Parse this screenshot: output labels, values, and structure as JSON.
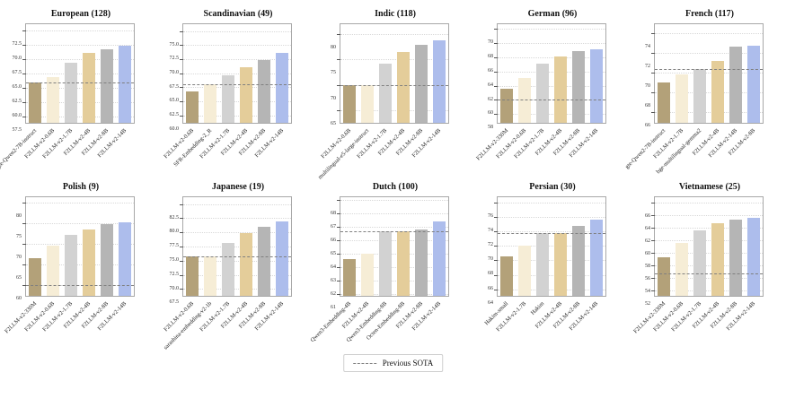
{
  "legend": {
    "label": "Previous SOTA"
  },
  "colors": {
    "bar_palette": [
      "#b3a179",
      "#f6edd6",
      "#d2d2d2",
      "#e4cd9a",
      "#b5b5b5",
      "#adbdec"
    ],
    "sota_line": "#7f7f7f",
    "gridline": "#d8d8d8",
    "axis_border": "#a8a8a8",
    "title_text": "#111111"
  },
  "chart_data": [
    {
      "type": "bar",
      "slug": "european",
      "title": "European (128)",
      "categories": [
        "gte-Qwen2-7B-instruct",
        "F2LLM-v2-0.6B",
        "F2LLM-v2-1.7B",
        "F2LLM-v2-4B",
        "F2LLM-v2-8B",
        "F2LLM-v2-14B"
      ],
      "values": [
        63.5,
        64.4,
        66.9,
        68.6,
        69.2,
        69.9
      ],
      "sota": 63.5,
      "yticks": [
        "57.5",
        "60.0",
        "62.5",
        "65.0",
        "67.5",
        "70.0",
        "72.5"
      ],
      "ylim": [
        56.4,
        73.6
      ],
      "grid": true,
      "legend_position": "bottom-center"
    },
    {
      "type": "bar",
      "slug": "scandinavian",
      "title": "Scandinavian (49)",
      "categories": [
        "F2LLM-v2-0.6B",
        "SFR-Embedding-2_R",
        "F2LLM-v2-1.7B",
        "F2LLM-v2-4B",
        "F2LLM-v2-8B",
        "F2LLM-v2-14B"
      ],
      "values": [
        64.3,
        65.5,
        67.2,
        68.5,
        69.9,
        71.1
      ],
      "sota": 65.5,
      "yticks": [
        "60.0",
        "62.5",
        "65.0",
        "67.5",
        "70.0",
        "72.5",
        "75.0"
      ],
      "ylim": [
        58.7,
        76.2
      ],
      "grid": true,
      "legend_position": "bottom-center"
    },
    {
      "type": "bar",
      "slug": "indic",
      "title": "Indic (118)",
      "categories": [
        "F2LLM-v2-0.6B",
        "multilingual-e5-large-instruct",
        "F2LLM-v2-1.7B",
        "F2LLM-v2-4B",
        "F2LLM-v2-8B",
        "F2LLM-v2-14B"
      ],
      "values": [
        70.0,
        70.0,
        74.2,
        76.5,
        77.9,
        78.9
      ],
      "sota": 70.0,
      "yticks": [
        "65",
        "70",
        "75",
        "80"
      ],
      "ylim": [
        62.5,
        82.0
      ],
      "grid": true,
      "legend_position": "bottom-center"
    },
    {
      "type": "bar",
      "slug": "german",
      "title": "German (96)",
      "categories": [
        "F2LLM-v2-330M",
        "F2LLM-v2-0.6B",
        "F2LLM-v2-1.7B",
        "F2LLM-v2-4B",
        "F2LLM-v2-8B",
        "F2LLM-v2-14B"
      ],
      "values": [
        61.6,
        63.1,
        65.1,
        66.1,
        66.8,
        67.1
      ],
      "sota": 60.0,
      "yticks": [
        "58",
        "60",
        "62",
        "64",
        "66",
        "68",
        "70"
      ],
      "ylim": [
        56.8,
        70.6
      ],
      "grid": true,
      "legend_position": "bottom-center"
    },
    {
      "type": "bar",
      "slug": "french",
      "title": "French (117)",
      "categories": [
        "gte-Qwen2-7B-instruct",
        "F2LLM-v2-1.7B",
        "bge-multilingual-gemma2",
        "F2LLM-v2-4B",
        "F2LLM-v2-14B",
        "F2LLM-v2-8B"
      ],
      "values": [
        69.0,
        69.8,
        70.4,
        71.2,
        72.6,
        72.7
      ],
      "sota": 70.4,
      "yticks": [
        "66",
        "68",
        "70",
        "72",
        "74"
      ],
      "ylim": [
        64.9,
        74.9
      ],
      "grid": true,
      "legend_position": "bottom-center"
    },
    {
      "type": "bar",
      "slug": "polish",
      "title": "Polish (9)",
      "categories": [
        "F2LLM-v2-330M",
        "F2LLM-v2-0.6B",
        "F2LLM-v2-1.7B",
        "F2LLM-v2-4B",
        "F2LLM-v2-8B",
        "F2LLM-v2-14B"
      ],
      "values": [
        66.5,
        69.5,
        72.0,
        73.4,
        74.6,
        75.2
      ],
      "sota": 60.0,
      "yticks": [
        "60",
        "65",
        "70",
        "75",
        "80"
      ],
      "ylim": [
        57.3,
        81.2
      ],
      "grid": true,
      "legend_position": "bottom-center"
    },
    {
      "type": "bar",
      "slug": "japanese",
      "title": "Japanese (19)",
      "categories": [
        "F2LLM-v2-0.6B",
        "sarashina-embedding-v2-1b",
        "F2LLM-v2-1.7B",
        "F2LLM-v2-4B",
        "F2LLM-v2-8B",
        "F2LLM-v2-14B"
      ],
      "values": [
        73.2,
        73.2,
        75.7,
        77.4,
        78.5,
        79.4
      ],
      "sota": 73.2,
      "yticks": [
        "67.5",
        "70.0",
        "72.5",
        "75.0",
        "77.5",
        "80.0",
        "82.5"
      ],
      "ylim": [
        66.3,
        83.7
      ],
      "grid": true,
      "legend_position": "bottom-center"
    },
    {
      "type": "bar",
      "slug": "dutch",
      "title": "Dutch (100)",
      "categories": [
        "Qwen3-Embedding-4B",
        "F2LLM-v2-4B",
        "Qwen3-Embedding-8B",
        "Octen-Embedding-8B",
        "F2LLM-v2-8B",
        "F2LLM-v2-14B"
      ],
      "values": [
        63.65,
        64.05,
        65.65,
        65.65,
        65.8,
        66.4
      ],
      "sota": 65.7,
      "yticks": [
        "61",
        "62",
        "63",
        "64",
        "65",
        "66",
        "67",
        "68"
      ],
      "ylim": [
        60.9,
        68.2
      ],
      "grid": true,
      "legend_position": "bottom-center"
    },
    {
      "type": "bar",
      "slug": "persian",
      "title": "Persian (30)",
      "categories": [
        "Hakim-small",
        "F2LLM-v2-1.7B",
        "Hakim",
        "F2LLM-v2-4B",
        "F2LLM-v2-8B",
        "F2LLM-v2-14B"
      ],
      "values": [
        68.5,
        70.0,
        71.7,
        71.7,
        72.7,
        73.6
      ],
      "sota": 71.7,
      "yticks": [
        "64",
        "66",
        "68",
        "70",
        "72",
        "74",
        "76"
      ],
      "ylim": [
        63.1,
        76.7
      ],
      "grid": true,
      "legend_position": "bottom-center"
    },
    {
      "type": "bar",
      "slug": "vietnamese",
      "title": "Vietnamese (25)",
      "categories": [
        "F2LLM-v2-330M",
        "F2LLM-v2-0.6B",
        "F2LLM-v2-1.7B",
        "F2LLM-v2-4B",
        "F2LLM-v2-8B",
        "F2LLM-v2-14B"
      ],
      "values": [
        57.4,
        59.6,
        61.6,
        62.8,
        63.3,
        63.6
      ],
      "sota": 54.8,
      "yticks": [
        "52",
        "54",
        "56",
        "58",
        "60",
        "62",
        "64",
        "66"
      ],
      "ylim": [
        51.2,
        66.9
      ],
      "grid": true,
      "legend_position": "bottom-center"
    }
  ]
}
